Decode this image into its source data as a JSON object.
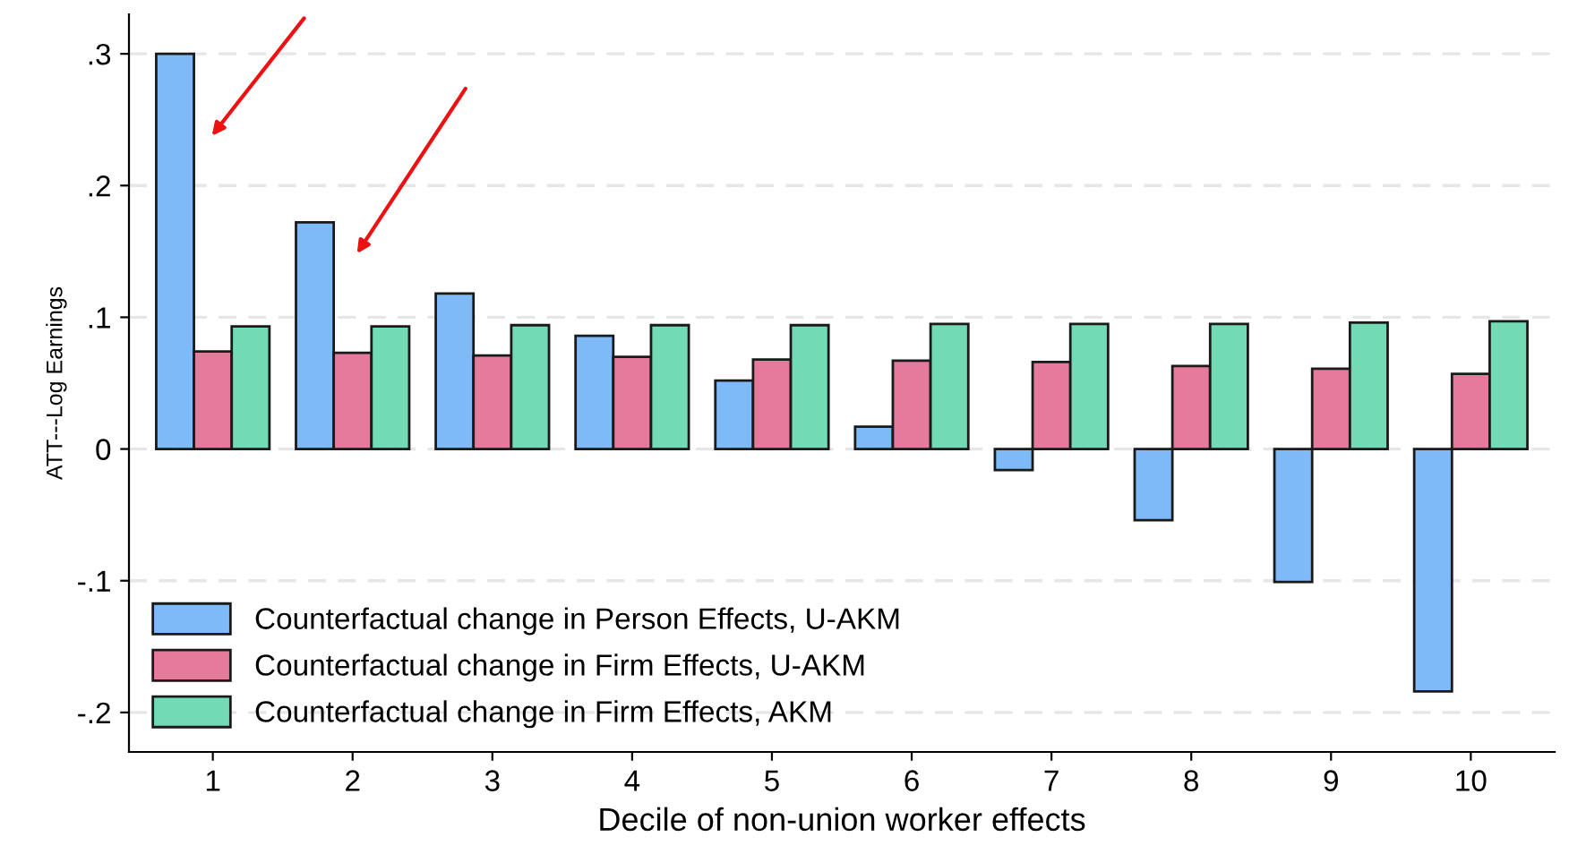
{
  "chart_data": {
    "type": "bar",
    "xlabel": "Decile of non-union worker effects",
    "ylabel": "ATT---Log Earnings",
    "categories": [
      "1",
      "2",
      "3",
      "4",
      "5",
      "6",
      "7",
      "8",
      "9",
      "10"
    ],
    "series": [
      {
        "name": "Counterfactual change in Person Effects, U-AKM",
        "color": "#7fbaf8",
        "values": [
          0.3,
          0.172,
          0.118,
          0.086,
          0.052,
          0.017,
          -0.016,
          -0.054,
          -0.101,
          -0.184
        ]
      },
      {
        "name": "Counterfactual change in Firm Effects, U-AKM",
        "color": "#e57a9c",
        "values": [
          0.074,
          0.073,
          0.071,
          0.07,
          0.068,
          0.067,
          0.066,
          0.063,
          0.061,
          0.057
        ]
      },
      {
        "name": "Counterfactual change in Firm Effects, AKM",
        "color": "#72dbb6",
        "values": [
          0.093,
          0.093,
          0.094,
          0.094,
          0.094,
          0.095,
          0.095,
          0.095,
          0.096,
          0.097
        ]
      }
    ],
    "ylim": [
      -0.23,
      0.33
    ],
    "yticks": [
      {
        "value": -0.2,
        "label": "-.2"
      },
      {
        "value": -0.1,
        "label": "-.1"
      },
      0,
      {
        "value": 0.1,
        "label": ".1"
      },
      {
        "value": 0.2,
        "label": ".2"
      },
      {
        "value": 0.3,
        "label": ".3"
      }
    ],
    "grid": "y",
    "legend": "bottom left"
  }
}
